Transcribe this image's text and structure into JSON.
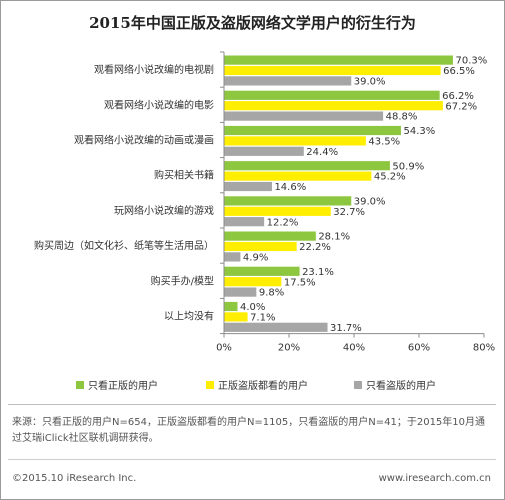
{
  "chart_data": {
    "type": "bar",
    "orientation": "horizontal",
    "title": "2015年中国正版及盗版网络文学用户的衍生行为",
    "categories": [
      "观看网络小说改编的电视剧",
      "观看网络小说改编的电影",
      "观看网络小说改编的动画或漫画",
      "购买相关书籍",
      "玩网络小说改编的游戏",
      "购买周边（如文化衫、纸笔等生活用品）",
      "购买手办/模型",
      "以上均没有"
    ],
    "series": [
      {
        "name": "只看正版的用户",
        "color": "#8dc63f",
        "values": [
          70.3,
          66.2,
          54.3,
          50.9,
          39.0,
          28.1,
          23.1,
          4.0
        ]
      },
      {
        "name": "正版盗版都看的用户",
        "color": "#ffee00",
        "values": [
          66.5,
          67.2,
          43.5,
          45.2,
          32.7,
          22.2,
          17.5,
          7.1
        ]
      },
      {
        "name": "只看盗版的用户",
        "color": "#a6a6a6",
        "values": [
          39.0,
          48.8,
          24.4,
          14.6,
          12.2,
          4.9,
          9.8,
          31.7
        ]
      }
    ],
    "xlim": [
      0,
      80
    ],
    "xticks": [
      "0%",
      "20%",
      "40%",
      "60%",
      "80%"
    ],
    "value_suffix": "%",
    "grid": false,
    "legend_position": "bottom"
  },
  "note": "来源：只看正版的用户N=654，正版盗版都看的用户N=1105，只看盗版的用户N=41；于2015年10月通过艾瑞iClick社区联机调研获得。",
  "footer": {
    "copyright": "©2015.10 iResearch Inc.",
    "website": "www.iresearch.com.cn"
  }
}
